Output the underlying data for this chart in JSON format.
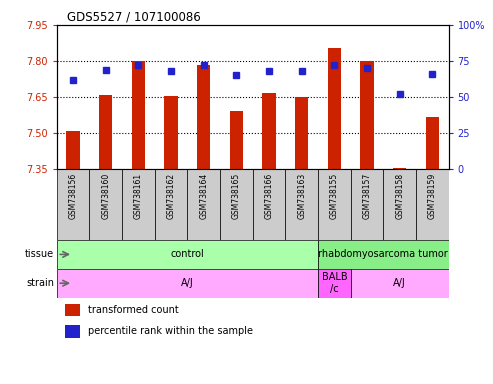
{
  "title": "GDS5527 / 107100086",
  "samples": [
    "GSM738156",
    "GSM738160",
    "GSM738161",
    "GSM738162",
    "GSM738164",
    "GSM738165",
    "GSM738166",
    "GSM738163",
    "GSM738155",
    "GSM738157",
    "GSM738158",
    "GSM738159"
  ],
  "red_values": [
    7.51,
    7.66,
    7.8,
    7.655,
    7.785,
    7.59,
    7.665,
    7.65,
    7.855,
    7.8,
    7.355,
    7.565
  ],
  "blue_values": [
    62,
    69,
    72,
    68,
    72,
    65,
    68,
    68,
    72,
    70,
    52,
    66
  ],
  "ylim_left": [
    7.35,
    7.95
  ],
  "ylim_right": [
    0,
    100
  ],
  "yticks_left": [
    7.35,
    7.5,
    7.65,
    7.8,
    7.95
  ],
  "yticks_right": [
    0,
    25,
    50,
    75,
    100
  ],
  "ytick_labels_right": [
    "0",
    "25",
    "50",
    "75",
    "100%"
  ],
  "bar_color": "#cc2200",
  "dot_color": "#2222cc",
  "bar_bottom": 7.35,
  "bar_width": 0.4,
  "dot_size": 5,
  "grid_yticks": [
    7.5,
    7.65,
    7.8
  ],
  "tick_label_bg": "#cccccc",
  "tick_label_border": "#888888",
  "tissue_groups": [
    {
      "label": "control",
      "start": 0,
      "end": 8,
      "color": "#aaffaa"
    },
    {
      "label": "rhabdomyosarcoma tumor",
      "start": 8,
      "end": 12,
      "color": "#88ee88"
    }
  ],
  "strain_groups": [
    {
      "label": "A/J",
      "start": 0,
      "end": 8,
      "color": "#ffaaff"
    },
    {
      "label": "BALB\n/c",
      "start": 8,
      "end": 9,
      "color": "#ff66ff"
    },
    {
      "label": "A/J",
      "start": 9,
      "end": 12,
      "color": "#ffaaff"
    }
  ],
  "legend_items": [
    {
      "color": "#cc2200",
      "label": "transformed count"
    },
    {
      "color": "#2222cc",
      "label": "percentile rank within the sample"
    }
  ],
  "left_tick_color": "#cc2200",
  "right_tick_color": "#2222cc",
  "tissue_label": "tissue",
  "strain_label": "strain"
}
